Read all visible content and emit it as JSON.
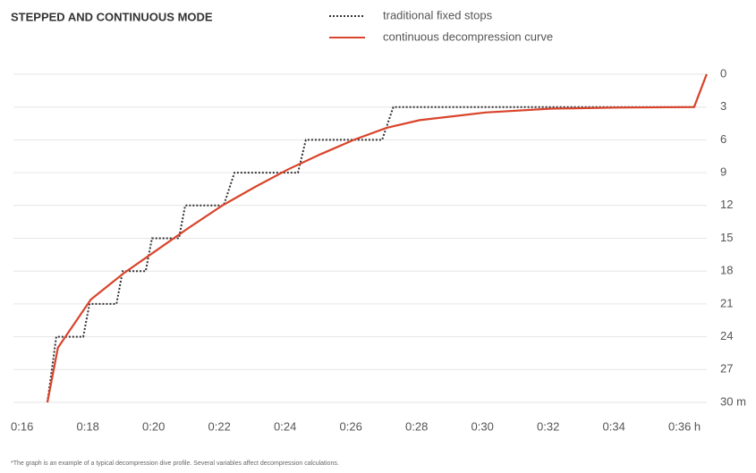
{
  "chart_data": {
    "type": "line",
    "title": "STEPPED AND CONTINUOUS MODE",
    "footnote": "*The graph is an example of a typical decompression dive profile. Several variables affect decompression calculations.",
    "series": [
      {
        "name": "traditional fixed stops",
        "color": "#333333",
        "dashed": true,
        "x": [
          16.68,
          16.95,
          17.77,
          17.96,
          18.78,
          18.97,
          19.67,
          19.86,
          20.68,
          20.87,
          22.04,
          22.37,
          24.3,
          24.54,
          26.86,
          27.2,
          36.35,
          36.73
        ],
        "values": [
          30,
          24,
          24,
          21,
          21,
          18,
          18,
          15,
          15,
          12,
          12,
          9,
          9,
          6,
          6,
          3,
          3,
          0
        ]
      },
      {
        "name": "continuous decompression curve",
        "color": "#d9442b",
        "dashed": false,
        "x": [
          16.68,
          17,
          18,
          19,
          20,
          21,
          22,
          23,
          24,
          25,
          26,
          27,
          28,
          30,
          32,
          34,
          36.35,
          36.73
        ],
        "values": [
          30,
          25,
          20.6,
          18.2,
          16.1,
          14,
          12,
          10.3,
          8.7,
          7.3,
          6,
          4.9,
          4.2,
          3.5,
          3.15,
          3.05,
          3,
          0
        ]
      }
    ],
    "xlim": [
      16,
      36
    ],
    "xticks": [
      {
        "value": 16,
        "label": "0:16"
      },
      {
        "value": 18,
        "label": "0:18"
      },
      {
        "value": 20,
        "label": "0:20"
      },
      {
        "value": 22,
        "label": "0:22"
      },
      {
        "value": 24,
        "label": "0:24"
      },
      {
        "value": 26,
        "label": "0:26"
      },
      {
        "value": 28,
        "label": "0:28"
      },
      {
        "value": 30,
        "label": "0:30"
      },
      {
        "value": 32,
        "label": "0:32"
      },
      {
        "value": 34,
        "label": "0:34"
      },
      {
        "value": 36,
        "label": "0:36 h"
      }
    ],
    "ylim": [
      0,
      30
    ],
    "y_inverted": true,
    "yticks": [
      0,
      3,
      6,
      9,
      12,
      15,
      18,
      21,
      24,
      27,
      {
        "value": 30,
        "label": "30 m"
      }
    ],
    "grid": true
  }
}
